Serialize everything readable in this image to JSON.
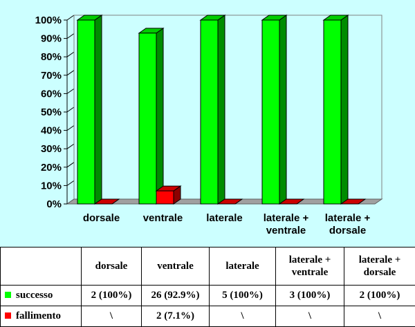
{
  "chart_data": {
    "type": "bar",
    "categories": [
      "dorsale",
      "ventrale",
      "laterale",
      "laterale +\nventrale",
      "laterale +\ndorsale"
    ],
    "series": [
      {
        "name": "successo",
        "color": "#00ff00",
        "values": [
          100,
          92.9,
          100,
          100,
          100
        ]
      },
      {
        "name": "fallimento",
        "color": "#ff0000",
        "values": [
          0,
          7.1,
          0,
          0,
          0
        ]
      }
    ],
    "y_ticks": [
      "0%",
      "10%",
      "20%",
      "30%",
      "40%",
      "50%",
      "60%",
      "70%",
      "80%",
      "90%",
      "100%"
    ],
    "ylim": [
      0,
      100
    ],
    "grid": true,
    "background": "#ccffff"
  },
  "table": {
    "headers": [
      "",
      "dorsale",
      "ventrale",
      "laterale",
      "laterale +\nventrale",
      "laterale +\ndorsale"
    ],
    "rows": [
      {
        "label": "successo",
        "color": "#00ff00",
        "cells": [
          "2 (100%)",
          "26 (92.9%)",
          "5 (100%)",
          "3 (100%)",
          "2 (100%)"
        ]
      },
      {
        "label": "fallimento",
        "color": "#ff0000",
        "cells": [
          "\\",
          "2 (7.1%)",
          "\\",
          "\\",
          "\\"
        ]
      }
    ]
  }
}
